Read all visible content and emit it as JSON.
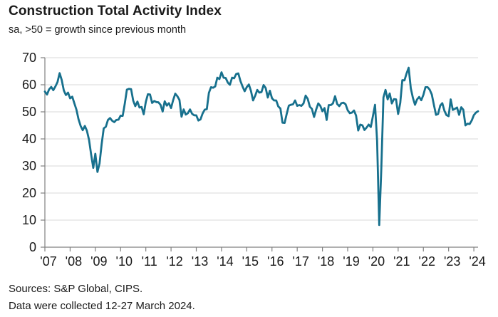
{
  "header": {
    "title": "Construction Total Activity Index",
    "subtitle": "sa, >50 = growth since previous month"
  },
  "footer": {
    "sources": "Sources: S&P Global, CIPS.",
    "note": "Data were collected 12-27 March 2024."
  },
  "colors": {
    "line": "#17708d",
    "grid": "#d9d9d9",
    "axis": "#808080",
    "text": "#1a1a1a"
  },
  "chart_data": {
    "type": "line",
    "title": "Construction Total Activity Index",
    "subtitle": "sa, >50 = growth since previous month",
    "xlabel": "",
    "ylabel": "",
    "ylim": [
      0,
      70
    ],
    "y_ticks": [
      0,
      10,
      20,
      30,
      40,
      50,
      60,
      70
    ],
    "grid": "horizontal",
    "legend_position": "none",
    "frequency": "monthly",
    "x_start": "2007-01",
    "x_end": "2024-03",
    "x_tick_labels": [
      "'07",
      "'08",
      "'09",
      "'10",
      "'11",
      "'12",
      "'13",
      "'14",
      "'15",
      "'16",
      "'17",
      "'18",
      "'19",
      "'20",
      "'21",
      "'22",
      "'23",
      "'24"
    ],
    "series": [
      {
        "name": "Construction Total Activity Index",
        "values": [
          57.5,
          56.4,
          58.3,
          59.2,
          58.0,
          59.4,
          61.0,
          64.3,
          61.8,
          57.9,
          56.2,
          57.1,
          55.0,
          55.6,
          53.2,
          50.8,
          47.3,
          44.8,
          43.2,
          44.8,
          43.0,
          39.6,
          34.3,
          29.3,
          34.5,
          27.8,
          30.9,
          38.1,
          43.9,
          44.5,
          47.0,
          47.7,
          46.7,
          46.2,
          47.0,
          47.1,
          48.6,
          48.5,
          53.1,
          58.2,
          58.5,
          58.4,
          54.1,
          52.1,
          53.8,
          51.6,
          51.8,
          49.1,
          53.7,
          56.5,
          56.4,
          53.3,
          54.0,
          53.6,
          53.5,
          52.6,
          50.1,
          53.9,
          52.3,
          53.2,
          51.4,
          54.3,
          56.7,
          55.8,
          54.4,
          48.2,
          50.9,
          49.0,
          49.5,
          50.9,
          49.3,
          48.7,
          48.7,
          46.8,
          47.2,
          49.4,
          50.8,
          51.0,
          57.0,
          59.1,
          58.9,
          59.4,
          62.6,
          62.1,
          64.6,
          62.6,
          62.5,
          60.8,
          60.0,
          62.6,
          62.4,
          64.0,
          64.2,
          61.4,
          59.4,
          57.6,
          59.1,
          60.1,
          57.8,
          54.2,
          55.9,
          58.1,
          57.1,
          57.3,
          59.9,
          58.8,
          55.3,
          57.8,
          55.0,
          54.2,
          54.2,
          52.0,
          51.2,
          46.0,
          45.9,
          49.2,
          52.3,
          52.6,
          52.8,
          54.2,
          52.2,
          52.5,
          52.2,
          53.1,
          56.0,
          54.8,
          51.9,
          51.1,
          48.1,
          50.8,
          53.1,
          52.2,
          50.2,
          51.4,
          47.0,
          52.5,
          52.5,
          53.1,
          55.8,
          52.9,
          52.1,
          53.2,
          53.4,
          52.8,
          50.6,
          49.5,
          49.7,
          50.5,
          48.6,
          43.1,
          45.3,
          45.0,
          43.3,
          44.2,
          45.3,
          44.4,
          48.4,
          52.6,
          39.3,
          8.2,
          28.9,
          55.3,
          58.1,
          54.6,
          56.8,
          53.1,
          54.7,
          54.6,
          49.2,
          53.3,
          61.7,
          61.6,
          64.2,
          66.3,
          58.7,
          55.2,
          52.6,
          54.6,
          55.5,
          54.3,
          56.3,
          59.1,
          59.1,
          58.2,
          56.4,
          52.6,
          48.9,
          49.2,
          52.3,
          53.2,
          50.4,
          48.8,
          48.4,
          54.6,
          50.7,
          51.1,
          51.6,
          48.9,
          51.7,
          50.8,
          45.0,
          45.6,
          45.5,
          46.8,
          48.8,
          49.7,
          50.2
        ]
      }
    ]
  }
}
